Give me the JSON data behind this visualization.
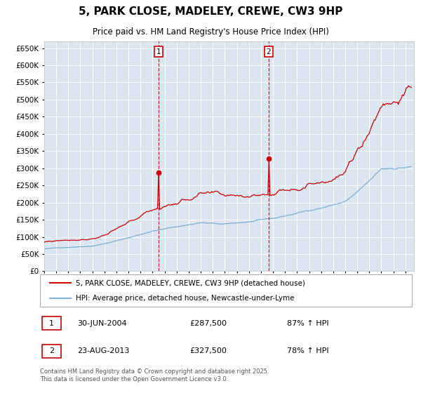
{
  "title": "5, PARK CLOSE, MADELEY, CREWE, CW3 9HP",
  "subtitle": "Price paid vs. HM Land Registry's House Price Index (HPI)",
  "legend_line1": "5, PARK CLOSE, MADELEY, CREWE, CW3 9HP (detached house)",
  "legend_line2": "HPI: Average price, detached house, Newcastle-under-Lyme",
  "annotation1_date": "30-JUN-2004",
  "annotation1_price": "£287,500",
  "annotation1_hpi": "87% ↑ HPI",
  "annotation2_date": "23-AUG-2013",
  "annotation2_price": "£327,500",
  "annotation2_hpi": "78% ↑ HPI",
  "vline1_year": 2004.5,
  "vline2_year": 2013.64,
  "point1_year": 2004.5,
  "point1_value": 287500,
  "point2_year": 2013.64,
  "point2_value": 327500,
  "ylim": [
    0,
    670000
  ],
  "ytick_step": 50000,
  "xlim_start": 1995.0,
  "xlim_end": 2025.7,
  "background_color": "#ffffff",
  "plot_bg_color": "#dce6f1",
  "grid_color": "#ffffff",
  "red_line_color": "#cc0000",
  "blue_line_color": "#7bafd4",
  "vline_color": "#cc0000",
  "annotation_box_color": "#cc0000",
  "footer_text": "Contains HM Land Registry data © Crown copyright and database right 2025.\nThis data is licensed under the Open Government Licence v3.0."
}
